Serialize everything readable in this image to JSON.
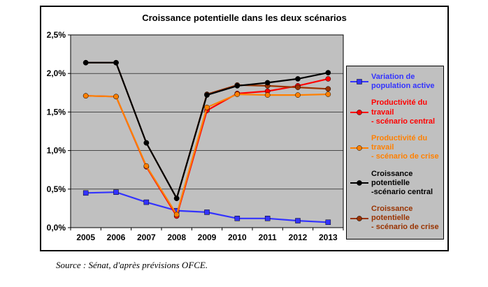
{
  "source_note": "Source : Sénat, d'après prévisions OFCE.",
  "chart_data": {
    "type": "line",
    "title": "Croissance potentielle dans les deux scénarios",
    "xlabel": "",
    "ylabel": "",
    "categories": [
      "2005",
      "2006",
      "2007",
      "2008",
      "2009",
      "2010",
      "2011",
      "2012",
      "2013"
    ],
    "ylim": [
      0,
      2.5
    ],
    "grid": true,
    "plot_bg": "#c0c0c0",
    "legend_position": "right",
    "yticks": [
      {
        "value": 0.0,
        "label": "0,0%"
      },
      {
        "value": 0.5,
        "label": "0,5%"
      },
      {
        "value": 1.0,
        "label": "1,0%"
      },
      {
        "value": 1.5,
        "label": "1,5%"
      },
      {
        "value": 2.0,
        "label": "2,0%"
      },
      {
        "value": 2.5,
        "label": "2,5%"
      }
    ],
    "series": [
      {
        "name": "Variation de population active",
        "legend_label": "Variation de\npopulation active",
        "color": "#3333ff",
        "marker": "square",
        "values": [
          0.45,
          0.46,
          0.33,
          0.22,
          0.2,
          0.12,
          0.12,
          0.09,
          0.07
        ]
      },
      {
        "name": "Productivité du travail - scénario central",
        "legend_label": "Productivité du travail\n- scénario central",
        "color": "#ff0000",
        "marker": "circle",
        "values": [
          1.71,
          1.7,
          0.79,
          0.15,
          1.52,
          1.74,
          1.77,
          1.84,
          1.93
        ]
      },
      {
        "name": "Productivité du travail - scénario de crise",
        "legend_label": "Productivité du travail\n- scénario de crise",
        "color": "#ff8000",
        "marker": "circle",
        "values": [
          1.71,
          1.7,
          0.8,
          0.17,
          1.56,
          1.73,
          1.72,
          1.72,
          1.73
        ]
      },
      {
        "name": "Croissance potentielle - scénario central",
        "legend_label": "Croissance potentielle\n-scénario central",
        "color": "#000000",
        "marker": "circle",
        "z": 10,
        "values": [
          2.14,
          2.14,
          1.1,
          0.38,
          1.72,
          1.84,
          1.88,
          1.93,
          2.01
        ]
      },
      {
        "name": "Croissance potentielle - scénario de crise",
        "legend_label": "Croissance potentielle\n- scénario de crise",
        "color": "#993300",
        "marker": "circle",
        "values": [
          2.14,
          2.14,
          1.1,
          0.38,
          1.73,
          1.85,
          1.84,
          1.82,
          1.8
        ]
      }
    ]
  }
}
